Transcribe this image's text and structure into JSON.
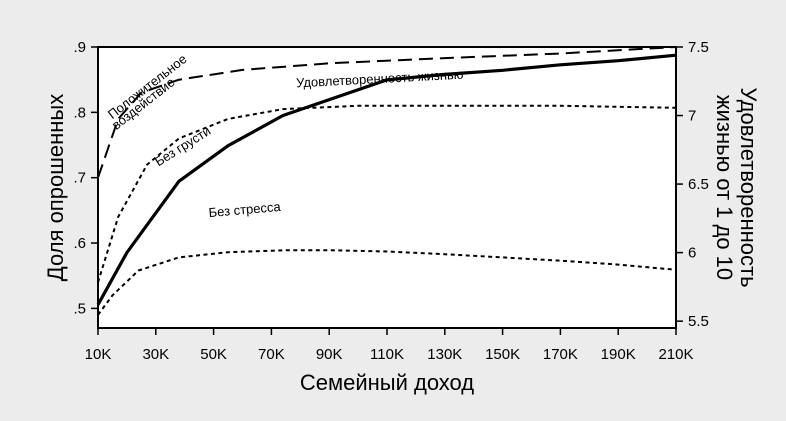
{
  "chart_data": {
    "type": "line",
    "xlabel": "Семейный доход",
    "ylabel_left": "Доля опрошенных",
    "ylabel_right": [
      "Удовлетворенность",
      "жизнью от 1 до 10"
    ],
    "x_ticks": [
      "10K",
      "30K",
      "50K",
      "70K",
      "90K",
      "110K",
      "130K",
      "150K",
      "170K",
      "190K",
      "210K"
    ],
    "x_tick_values": [
      10000,
      30000,
      50000,
      70000,
      90000,
      110000,
      130000,
      150000,
      170000,
      190000,
      210000
    ],
    "xlim": [
      10000,
      210000
    ],
    "y_left_ticks": [
      ".5",
      ".6",
      ".7",
      ".8",
      ".9"
    ],
    "y_left_tick_values": [
      0.5,
      0.6,
      0.7,
      0.8,
      0.9
    ],
    "ylim_left": [
      0.47,
      0.9
    ],
    "y_right_ticks": [
      "5.5",
      "6",
      "6.5",
      "7",
      "7.5"
    ],
    "y_right_tick_values": [
      5.5,
      6.0,
      6.5,
      7.0,
      7.5
    ],
    "ylim_right": [
      5.45,
      7.5
    ],
    "grid": false,
    "legend": "none",
    "series": [
      {
        "name": "Положительное воздействие",
        "label_lines": [
          "Положительное",
          "воздействие"
        ],
        "axis": "left",
        "style": "long-dash",
        "x": [
          10000,
          17000,
          25000,
          38000,
          60000,
          90000,
          130000,
          170000,
          210000
        ],
        "y": [
          0.7,
          0.79,
          0.83,
          0.85,
          0.865,
          0.875,
          0.883,
          0.89,
          0.9
        ]
      },
      {
        "name": "Удовлетворенность жизнью",
        "label_lines": [
          "Удовлетворенность жизнью"
        ],
        "axis": "right",
        "style": "solid",
        "x": [
          10000,
          20000,
          38000,
          55000,
          74000,
          110000,
          130000,
          150000,
          170000,
          190000,
          210000
        ],
        "y": [
          5.62,
          6.0,
          6.52,
          6.78,
          7.0,
          7.26,
          7.3,
          7.33,
          7.37,
          7.4,
          7.44
        ]
      },
      {
        "name": "Без грусти",
        "label_lines": [
          "Без грусти"
        ],
        "axis": "left",
        "style": "short-dash",
        "x": [
          10000,
          17000,
          27000,
          38000,
          55000,
          74000,
          100000,
          130000,
          170000,
          210000
        ],
        "y": [
          0.54,
          0.64,
          0.72,
          0.76,
          0.79,
          0.805,
          0.81,
          0.81,
          0.81,
          0.807
        ]
      },
      {
        "name": "Без стресса",
        "label_lines": [
          "Без стресса"
        ],
        "axis": "left",
        "style": "short-dash",
        "x": [
          10000,
          15000,
          24000,
          38000,
          55000,
          75000,
          90000,
          110000,
          130000,
          150000,
          170000,
          190000,
          210000
        ],
        "y": [
          0.49,
          0.52,
          0.558,
          0.578,
          0.586,
          0.589,
          0.589,
          0.587,
          0.583,
          0.578,
          0.573,
          0.567,
          0.559
        ]
      }
    ]
  }
}
